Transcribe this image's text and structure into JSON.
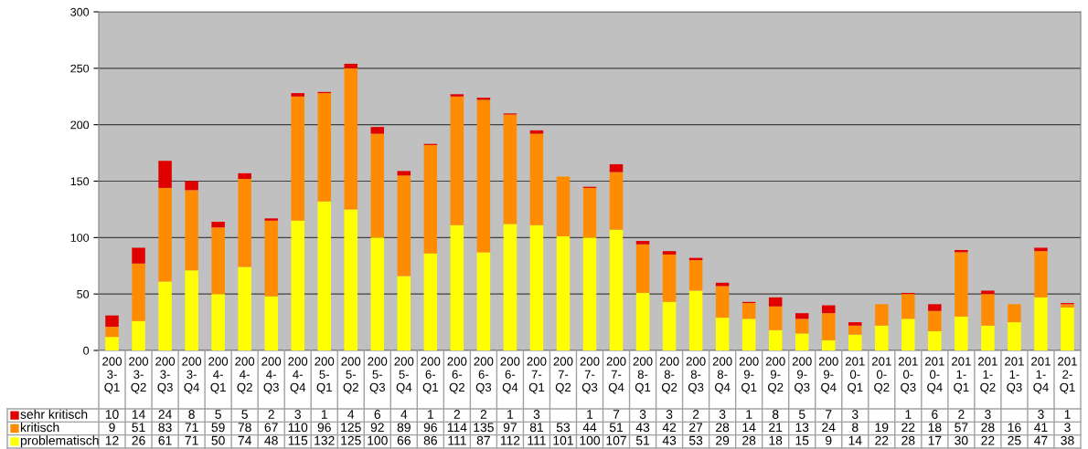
{
  "chart_data": {
    "type": "bar",
    "stacked": true,
    "data_labels": true,
    "legend": "bottom",
    "grid": "y",
    "ylim": [
      0,
      300
    ],
    "yticks": [
      0,
      50,
      100,
      150,
      200,
      250,
      300
    ],
    "categories": [
      "2003-Q1",
      "2003-Q2",
      "2003-Q3",
      "2003-Q4",
      "2004-Q1",
      "2004-Q2",
      "2004-Q3",
      "2004-Q4",
      "2005-Q1",
      "2005-Q2",
      "2005-Q3",
      "2005-Q4",
      "2006-Q1",
      "2006-Q2",
      "2006-Q3",
      "2006-Q4",
      "2007-Q1",
      "2007-Q2",
      "2007-Q3",
      "2007-Q4",
      "2008-Q1",
      "2008-Q2",
      "2008-Q3",
      "2008-Q4",
      "2009-Q1",
      "2009-Q2",
      "2009-Q3",
      "2009-Q4",
      "2010-Q1",
      "2010-Q2",
      "2010-Q3",
      "2010-Q4",
      "2011-Q1",
      "2011-Q2",
      "2011-Q3",
      "2011-Q4",
      "2012-Q1"
    ],
    "series": [
      {
        "name": "problematisch",
        "color": "#ffff00",
        "values": [
          12,
          26,
          61,
          71,
          50,
          74,
          48,
          115,
          132,
          125,
          100,
          66,
          86,
          111,
          87,
          112,
          111,
          101,
          100,
          107,
          51,
          43,
          53,
          29,
          28,
          18,
          15,
          9,
          14,
          22,
          28,
          17,
          30,
          22,
          25,
          47,
          38
        ]
      },
      {
        "name": "kritisch",
        "color": "#ff8c00",
        "values": [
          9,
          51,
          83,
          71,
          59,
          78,
          67,
          110,
          96,
          125,
          92,
          89,
          96,
          114,
          135,
          97,
          81,
          53,
          44,
          51,
          43,
          42,
          27,
          28,
          14,
          21,
          13,
          24,
          8,
          19,
          22,
          18,
          57,
          28,
          16,
          41,
          3
        ]
      },
      {
        "name": "sehr kritisch",
        "color": "#e00000",
        "values": [
          10,
          14,
          24,
          8,
          5,
          5,
          2,
          3,
          1,
          4,
          6,
          4,
          1,
          2,
          2,
          1,
          3,
          null,
          1,
          7,
          3,
          3,
          2,
          3,
          1,
          8,
          5,
          7,
          3,
          null,
          1,
          6,
          2,
          3,
          null,
          3,
          1
        ]
      }
    ]
  }
}
